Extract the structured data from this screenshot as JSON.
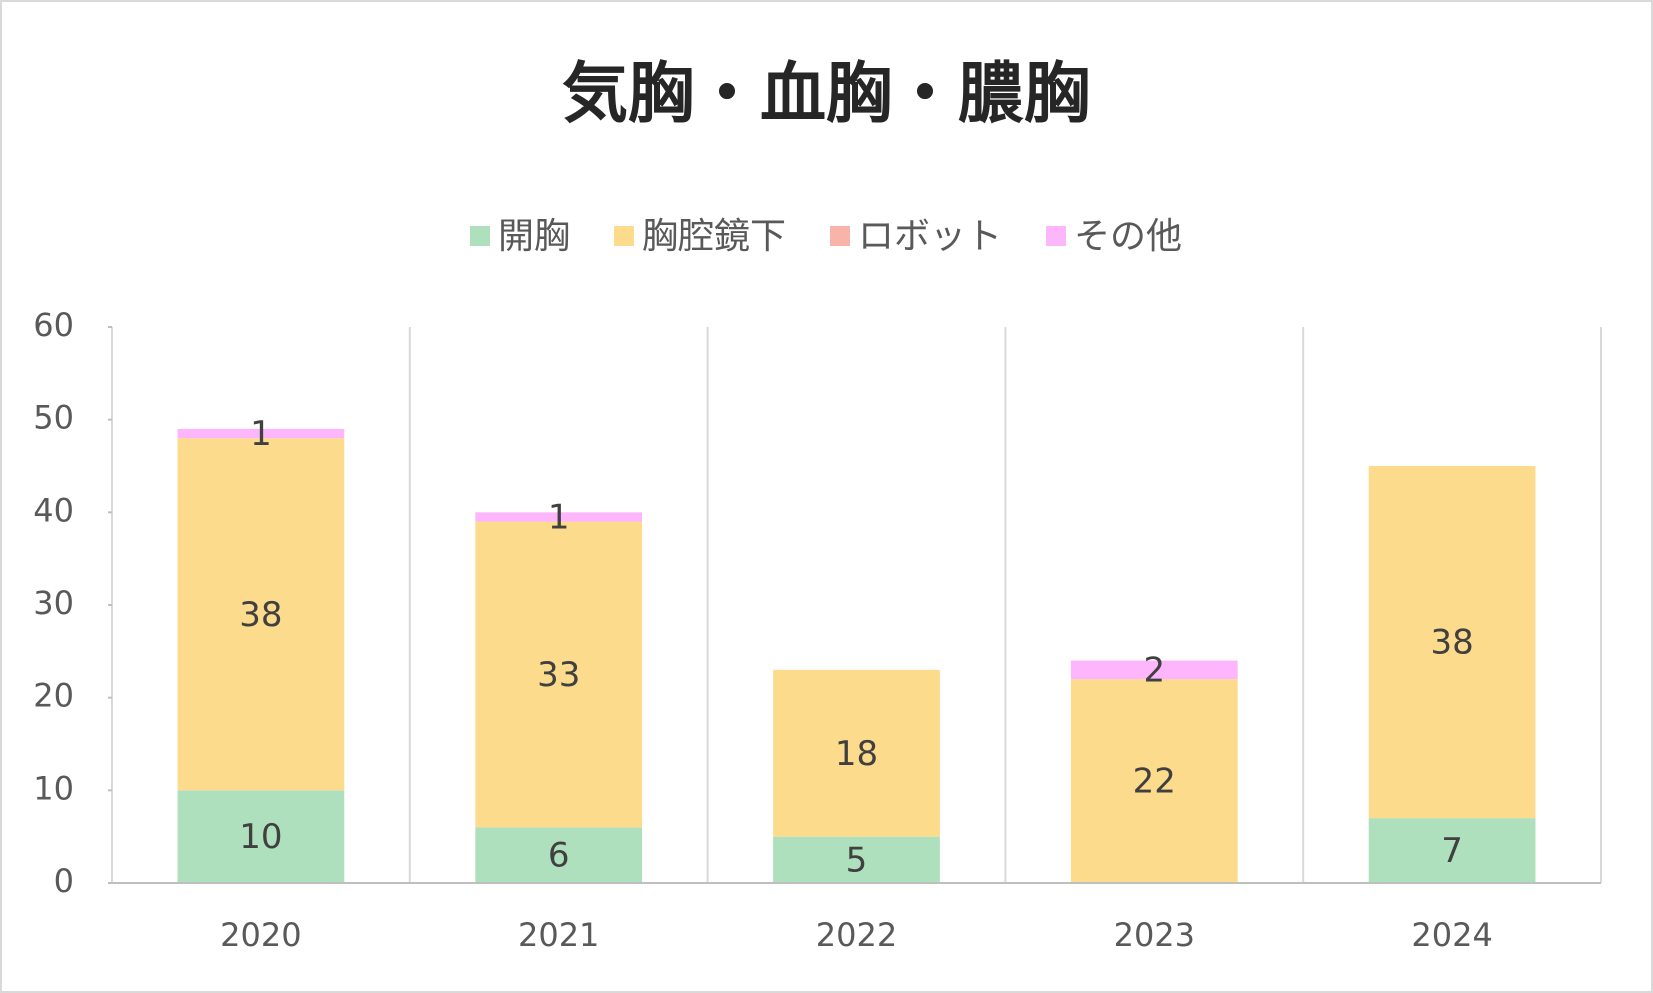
{
  "chart_data": {
    "type": "stacked_bar",
    "title": "気胸・血胸・膿胸",
    "categories": [
      "2020",
      "2021",
      "2022",
      "2023",
      "2024"
    ],
    "series": [
      {
        "name": "開胸",
        "color": "#aee0bd",
        "values": [
          10,
          6,
          5,
          null,
          7
        ]
      },
      {
        "name": "胸腔鏡下",
        "color": "#fcdc8c",
        "values": [
          38,
          33,
          18,
          22,
          38
        ]
      },
      {
        "name": "ロボット",
        "color": "#f8b4a8",
        "values": [
          null,
          null,
          null,
          null,
          null
        ]
      },
      {
        "name": "その他",
        "color": "#fdb6fb",
        "values": [
          1,
          1,
          null,
          2,
          null
        ]
      }
    ],
    "ylim": [
      0,
      60
    ],
    "yticks": [
      0,
      10,
      20,
      30,
      40,
      50,
      60
    ],
    "legend": "top"
  }
}
